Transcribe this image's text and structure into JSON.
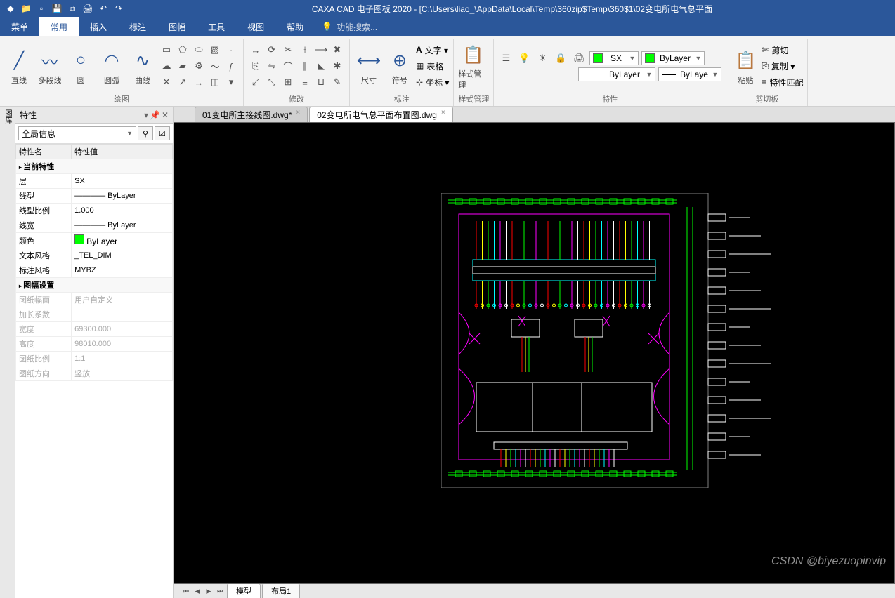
{
  "app": {
    "title": "CAXA CAD 电子图板 2020 - [C:\\Users\\liao_\\AppData\\Local\\Temp\\360zip$Temp\\360$1\\02变电所电气总平面"
  },
  "qat": {
    "icons": [
      "folder-icon",
      "new-icon",
      "save-icon",
      "saveall-icon",
      "print-icon",
      "undo-icon",
      "redo-icon"
    ]
  },
  "menubar": {
    "items": [
      "菜单",
      "常用",
      "插入",
      "标注",
      "图幅",
      "工具",
      "视图",
      "帮助"
    ],
    "active_index": 1,
    "search_placeholder": "功能搜索..."
  },
  "ribbon": {
    "groups": {
      "draw": {
        "label": "绘图",
        "large": [
          {
            "name": "line",
            "label": "直线",
            "glyph": "╱"
          },
          {
            "name": "polyline",
            "label": "多段线",
            "glyph": "〰"
          },
          {
            "name": "circle",
            "label": "圆",
            "glyph": "○"
          },
          {
            "name": "arc",
            "label": "圆弧",
            "glyph": "◠"
          },
          {
            "name": "spline",
            "label": "曲线",
            "glyph": "∿"
          }
        ]
      },
      "modify": {
        "label": "修改"
      },
      "dim": {
        "label": "标注",
        "large": [
          {
            "name": "dimension",
            "label": "尺寸",
            "glyph": "⟷"
          },
          {
            "name": "symbol",
            "label": "符号",
            "glyph": "⊕"
          }
        ],
        "side": [
          {
            "name": "text",
            "label": "文字 ▾",
            "glyph": "A"
          },
          {
            "name": "table",
            "label": "表格",
            "glyph": "▦"
          },
          {
            "name": "coord",
            "label": "坐标 ▾",
            "glyph": "⊹"
          }
        ]
      },
      "style": {
        "label": "样式管理",
        "label_btn": "样式管理"
      },
      "props": {
        "label": "特性",
        "layer_value": "SX",
        "layer_color": "#00ff00",
        "color_value": "ByLayer",
        "color_swatch": "#00ff00",
        "linetype_value": "ByLayer",
        "lineweight_value": "ByLaye"
      },
      "paste": {
        "label": "剪切板",
        "label_btn": "粘贴",
        "side": [
          {
            "name": "cut",
            "label": "剪切",
            "glyph": "✄"
          },
          {
            "name": "copy",
            "label": "复制 ▾",
            "glyph": "⎘"
          },
          {
            "name": "match",
            "label": "特性匹配",
            "glyph": "≡"
          }
        ]
      }
    }
  },
  "props_panel": {
    "title": "特性",
    "selector_value": "全局信息",
    "col_name": "特性名",
    "col_value": "特性值",
    "section1": "当前特性",
    "rows1": [
      {
        "name": "层",
        "value": "SX"
      },
      {
        "name": "线型",
        "value": "———— ByLayer"
      },
      {
        "name": "线型比例",
        "value": "1.000"
      },
      {
        "name": "线宽",
        "value": "———— ByLayer"
      },
      {
        "name": "颜色",
        "value": "ByLayer",
        "swatch": "#00ff00"
      },
      {
        "name": "文本风格",
        "value": "_TEL_DIM"
      },
      {
        "name": "标注风格",
        "value": "MYBZ"
      }
    ],
    "section2": "图幅设置",
    "rows2": [
      {
        "name": "图纸幅面",
        "value": "用户自定义"
      },
      {
        "name": "加长系数",
        "value": ""
      },
      {
        "name": "宽度",
        "value": "69300.000"
      },
      {
        "name": "高度",
        "value": "98010.000"
      },
      {
        "name": "图纸比例",
        "value": "1:1"
      },
      {
        "name": "图纸方向",
        "value": "竖放"
      }
    ]
  },
  "tabs": {
    "docs": [
      {
        "label": "01变电所主接线图.dwg*",
        "active": false
      },
      {
        "label": "02变电所电气总平面布置图.dwg",
        "active": true
      }
    ],
    "layouts": [
      {
        "label": "模型",
        "active": true
      },
      {
        "label": "布局1",
        "active": false
      }
    ]
  },
  "watermark": "CSDN @biyezuopinvip",
  "drawing": {
    "colors": {
      "frame": "#808080",
      "green": "#00ff00",
      "cyan": "#00ffff",
      "magenta": "#ff00ff",
      "white": "#ffffff",
      "yellow": "#ffff00",
      "red": "#ff0000",
      "blue": "#4a90ff"
    }
  }
}
